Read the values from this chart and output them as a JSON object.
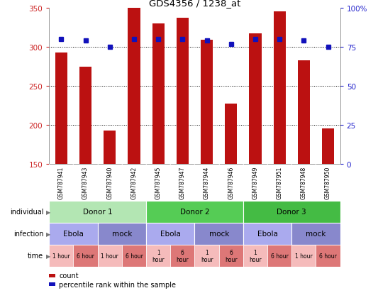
{
  "title": "GDS4356 / 1238_at",
  "samples": [
    "GSM787941",
    "GSM787943",
    "GSM787940",
    "GSM787942",
    "GSM787945",
    "GSM787947",
    "GSM787944",
    "GSM787946",
    "GSM787949",
    "GSM787951",
    "GSM787948",
    "GSM787950"
  ],
  "counts": [
    293,
    275,
    193,
    350,
    330,
    338,
    309,
    227,
    318,
    346,
    283,
    195
  ],
  "percentile_ranks": [
    80,
    79,
    75,
    80,
    80,
    80,
    79,
    77,
    80,
    80,
    79,
    75
  ],
  "y_min": 150,
  "y_max": 350,
  "y_ticks": [
    150,
    200,
    250,
    300,
    350
  ],
  "y_right_ticks": [
    0,
    25,
    50,
    75,
    100
  ],
  "bar_color": "#bb1111",
  "dot_color": "#1111bb",
  "dotted_lines": [
    200,
    250,
    300
  ],
  "individual_groups": [
    {
      "label": "Donor 1",
      "start": 0,
      "end": 4,
      "color": "#b3e6b3"
    },
    {
      "label": "Donor 2",
      "start": 4,
      "end": 8,
      "color": "#55cc55"
    },
    {
      "label": "Donor 3",
      "start": 8,
      "end": 12,
      "color": "#44bb44"
    }
  ],
  "infection_groups": [
    {
      "label": "Ebola",
      "start": 0,
      "end": 2,
      "color": "#aaaaee"
    },
    {
      "label": "mock",
      "start": 2,
      "end": 4,
      "color": "#8888cc"
    },
    {
      "label": "Ebola",
      "start": 4,
      "end": 6,
      "color": "#aaaaee"
    },
    {
      "label": "mock",
      "start": 6,
      "end": 8,
      "color": "#8888cc"
    },
    {
      "label": "Ebola",
      "start": 8,
      "end": 10,
      "color": "#aaaaee"
    },
    {
      "label": "mock",
      "start": 10,
      "end": 12,
      "color": "#8888cc"
    }
  ],
  "time_groups": [
    {
      "label": "1 hour",
      "start": 0,
      "end": 1,
      "color": "#f5bbbb"
    },
    {
      "label": "6 hour",
      "start": 1,
      "end": 2,
      "color": "#dd7777"
    },
    {
      "label": "1 hour",
      "start": 2,
      "end": 3,
      "color": "#f5bbbb"
    },
    {
      "label": "6 hour",
      "start": 3,
      "end": 4,
      "color": "#dd7777"
    },
    {
      "label": "1\nhour",
      "start": 4,
      "end": 5,
      "color": "#f5bbbb"
    },
    {
      "label": "6\nhour",
      "start": 5,
      "end": 6,
      "color": "#dd7777"
    },
    {
      "label": "1\nhour",
      "start": 6,
      "end": 7,
      "color": "#f5bbbb"
    },
    {
      "label": "6\nhour",
      "start": 7,
      "end": 8,
      "color": "#dd7777"
    },
    {
      "label": "1\nhour",
      "start": 8,
      "end": 9,
      "color": "#f5bbbb"
    },
    {
      "label": "6 hour",
      "start": 9,
      "end": 10,
      "color": "#dd7777"
    },
    {
      "label": "1 hour",
      "start": 10,
      "end": 11,
      "color": "#f5bbbb"
    },
    {
      "label": "6 hour",
      "start": 11,
      "end": 12,
      "color": "#dd7777"
    }
  ],
  "row_labels": [
    "individual",
    "infection",
    "time"
  ],
  "legend_count_label": "count",
  "legend_pct_label": "percentile rank within the sample",
  "ylabel_left_color": "#cc2222",
  "ylabel_right_color": "#2222cc",
  "sample_bg": "#cccccc",
  "fig_bg": "#ffffff"
}
